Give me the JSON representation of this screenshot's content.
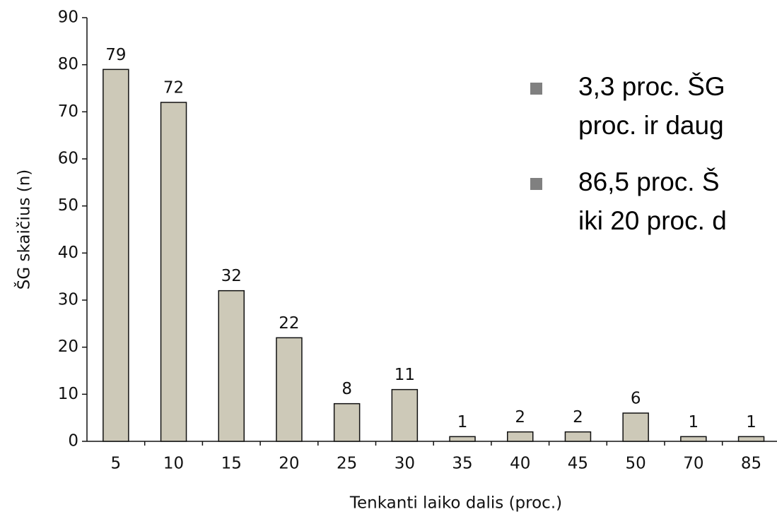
{
  "chart_data": {
    "type": "bar",
    "ylabel": "ŠG skaičius (n)",
    "xlabel": "Tenkanti laiko dalis (proc.)",
    "categories": [
      "5",
      "10",
      "15",
      "20",
      "25",
      "30",
      "35",
      "40",
      "45",
      "50",
      "70",
      "85"
    ],
    "values": [
      79,
      72,
      32,
      22,
      8,
      11,
      1,
      2,
      2,
      6,
      1,
      1
    ],
    "color": "#cdc9b8",
    "ylim": [
      0,
      90
    ],
    "yticks": [
      0,
      10,
      20,
      30,
      40,
      50,
      60,
      70,
      80,
      90
    ],
    "annotations": [
      [
        "3,3 proc. ŠG",
        "proc. ir daug"
      ],
      [
        "86,5 proc. Š",
        "iki 20 proc. d"
      ]
    ]
  }
}
